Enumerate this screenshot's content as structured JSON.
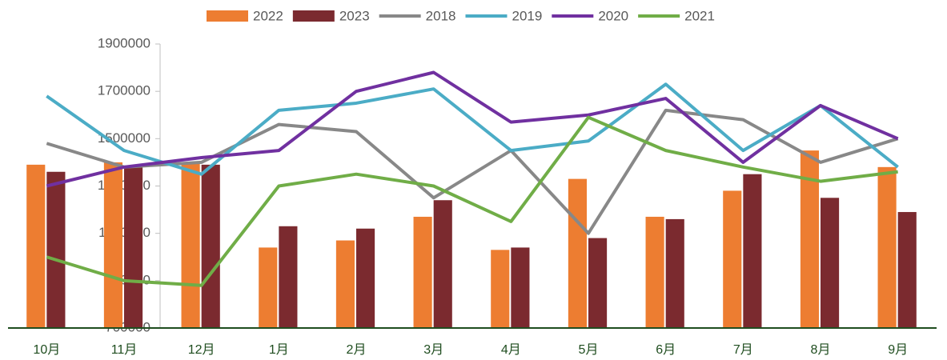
{
  "chart_data": {
    "type": "combo",
    "categories": [
      "10月",
      "11月",
      "12月",
      "1月",
      "2月",
      "3月",
      "4月",
      "5月",
      "6月",
      "7月",
      "8月",
      "9月"
    ],
    "series": [
      {
        "name": "2022",
        "kind": "bar",
        "color": "#ed7d31",
        "values": [
          1390000,
          1400000,
          1400000,
          1040000,
          1070000,
          1170000,
          1030000,
          1330000,
          1170000,
          1280000,
          1450000,
          1380000
        ]
      },
      {
        "name": "2023",
        "kind": "bar",
        "color": "#7b2a2f",
        "values": [
          1360000,
          1380000,
          1390000,
          1130000,
          1120000,
          1240000,
          1040000,
          1080000,
          1160000,
          1350000,
          1250000,
          1190000
        ]
      },
      {
        "name": "2018",
        "kind": "line",
        "color": "#888888",
        "values": [
          1480000,
          1380000,
          1400000,
          1560000,
          1530000,
          1250000,
          1450000,
          1100000,
          1620000,
          1580000,
          1400000,
          1500000
        ]
      },
      {
        "name": "2019",
        "kind": "line",
        "color": "#4bacc6",
        "values": [
          1680000,
          1450000,
          1350000,
          1620000,
          1650000,
          1710000,
          1450000,
          1490000,
          1730000,
          1450000,
          1640000,
          1380000
        ]
      },
      {
        "name": "2020",
        "kind": "line",
        "color": "#7030a0",
        "values": [
          1300000,
          1380000,
          1420000,
          1450000,
          1700000,
          1780000,
          1570000,
          1600000,
          1670000,
          1400000,
          1640000,
          1500000
        ]
      },
      {
        "name": "2021",
        "kind": "line",
        "color": "#70ad47",
        "values": [
          1000000,
          900000,
          880000,
          1300000,
          1350000,
          1300000,
          1150000,
          1590000,
          1450000,
          1380000,
          1320000,
          1360000
        ]
      }
    ],
    "ylim": [
      700000,
      1900000
    ],
    "yticks": [
      700000,
      900000,
      1100000,
      1300000,
      1500000,
      1700000,
      1900000
    ]
  }
}
